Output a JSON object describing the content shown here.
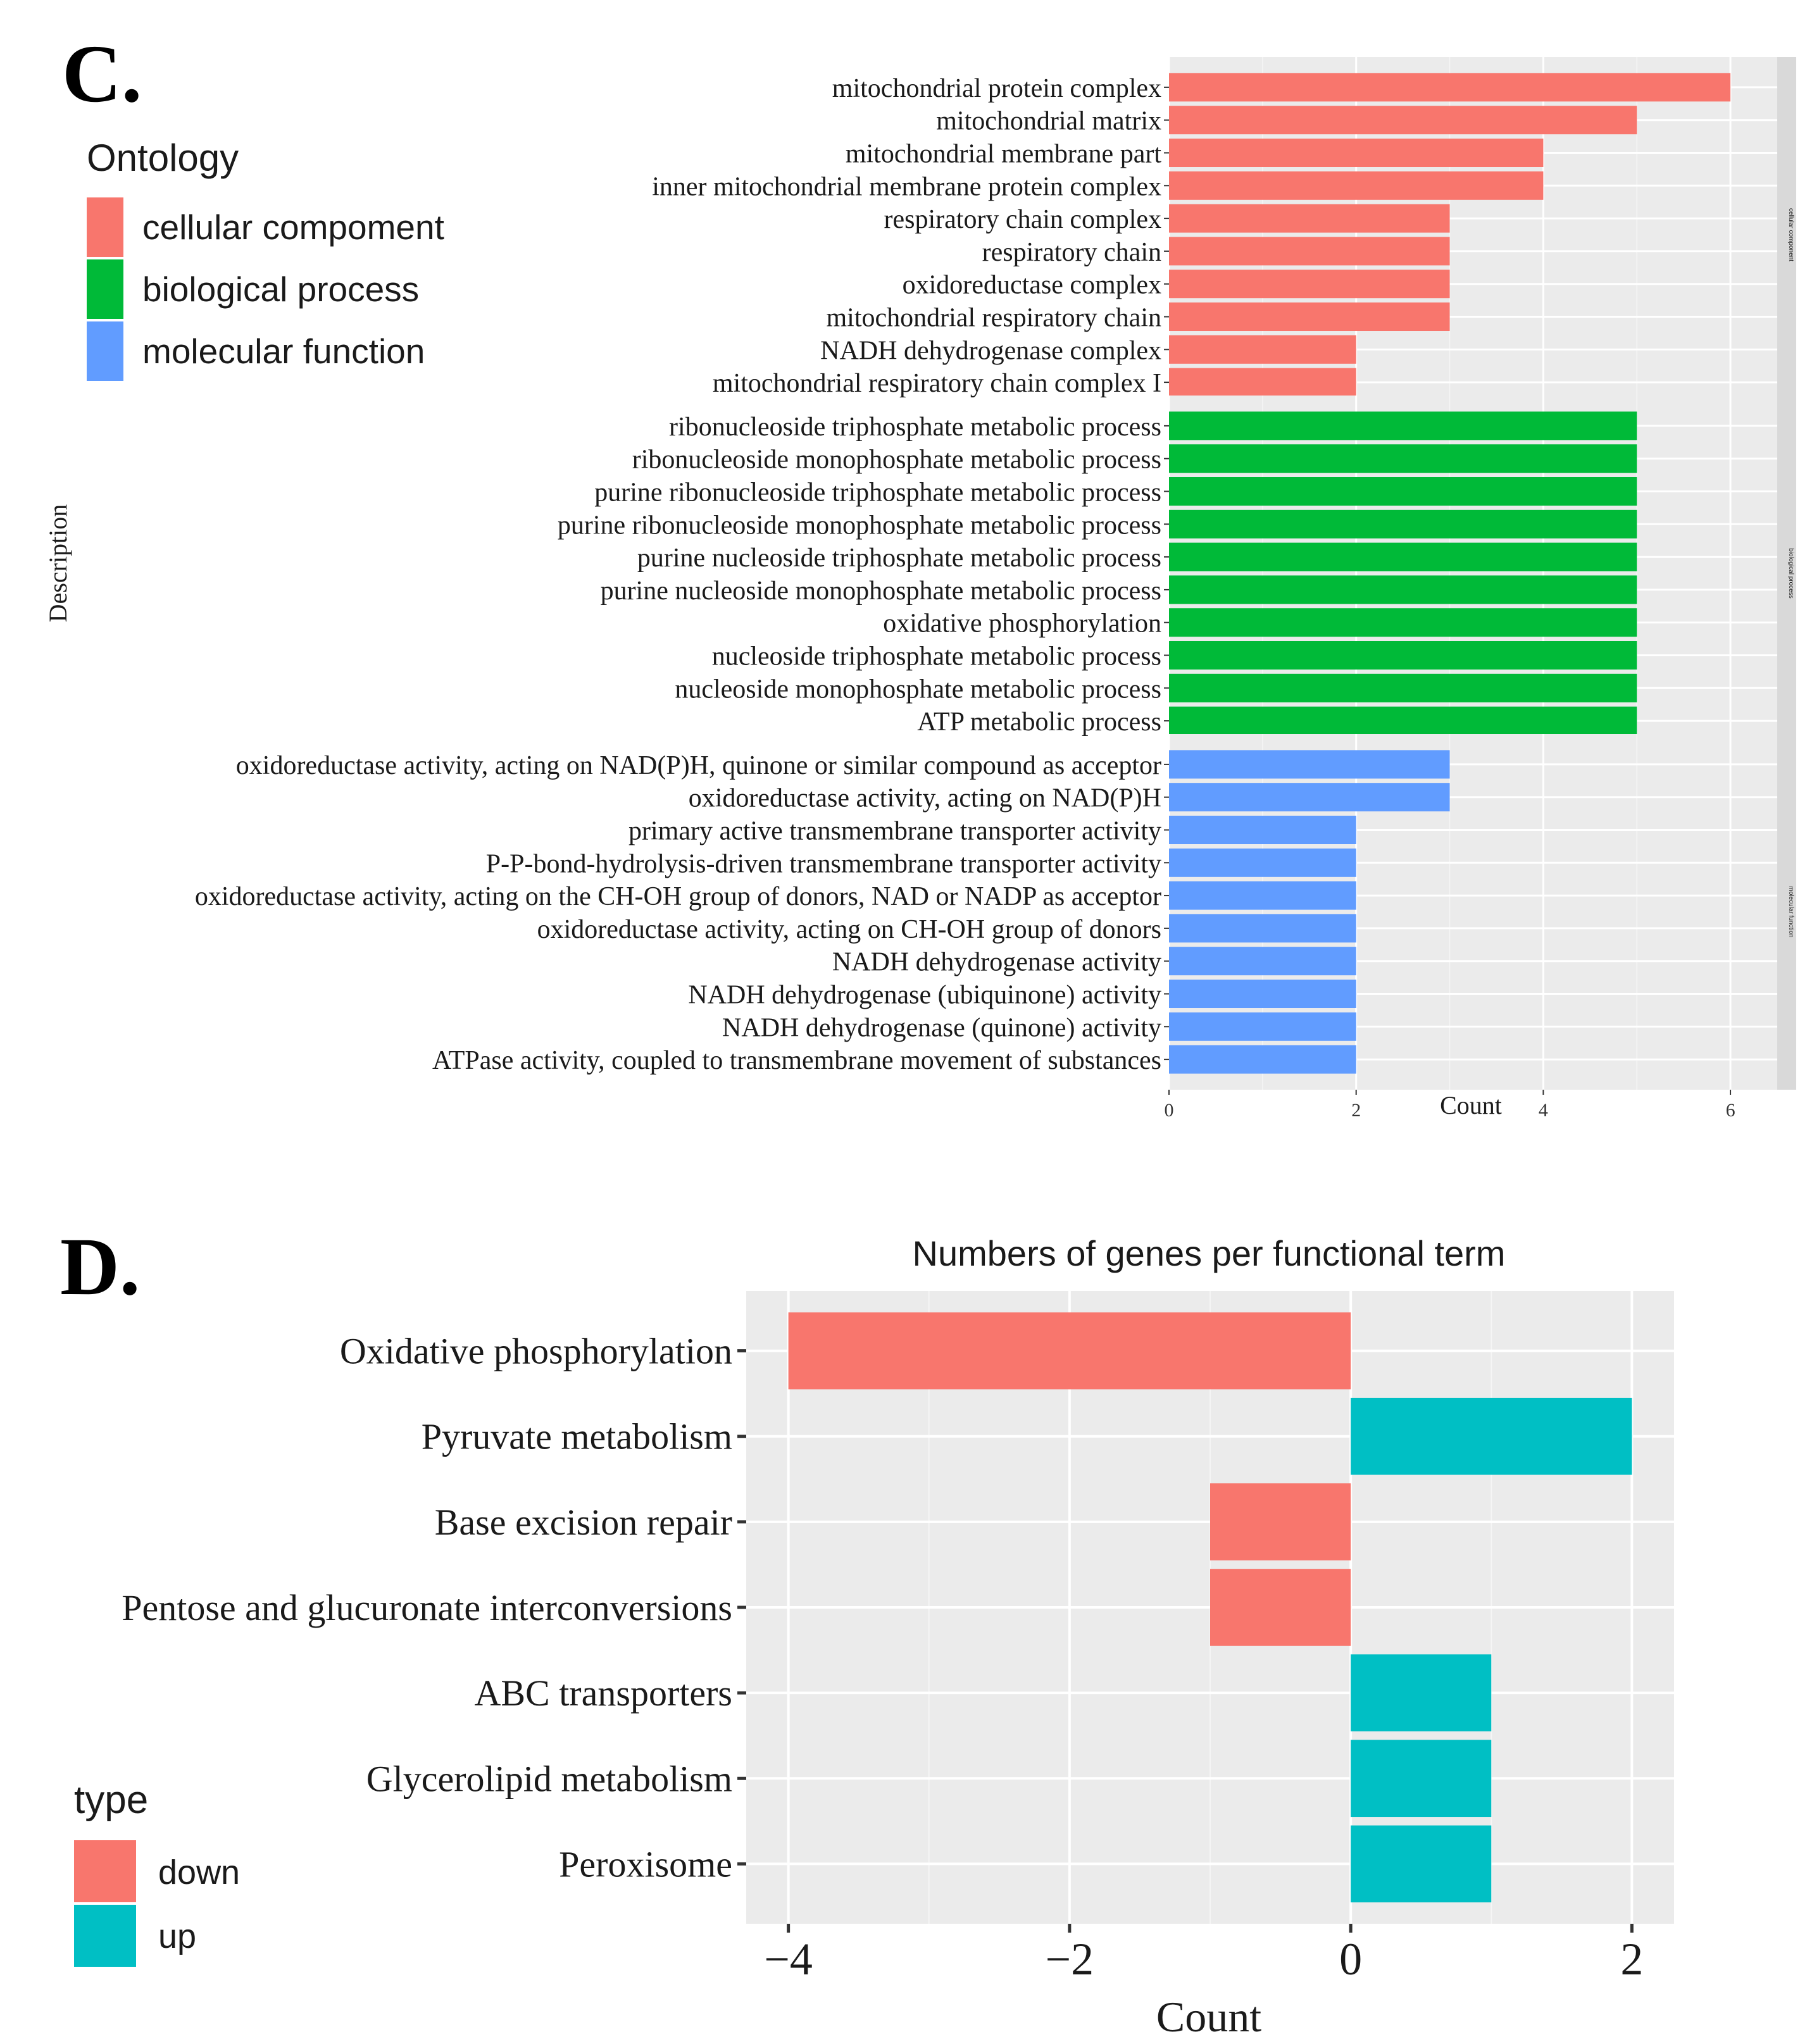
{
  "panel_c": {
    "label": "C.",
    "legend_title": "Ontology",
    "legend": [
      {
        "name": "cellular compoment",
        "color": "#F8766D"
      },
      {
        "name": "biological process",
        "color": "#00BA38"
      },
      {
        "name": "molecular function",
        "color": "#619CFF"
      }
    ]
  },
  "panel_d": {
    "label": "D.",
    "legend_title": "type",
    "legend": [
      {
        "name": "down",
        "color": "#F8766D"
      },
      {
        "name": "up",
        "color": "#00BFC4"
      }
    ]
  },
  "chart_data": [
    {
      "type": "bar",
      "orientation": "horizontal",
      "title": "",
      "xlabel": "Count",
      "ylabel": "Description",
      "xlim": [
        0,
        6.5
      ],
      "xticks": [
        0,
        2,
        4,
        6
      ],
      "grid": true,
      "facets": [
        {
          "name": "cellular component",
          "color": "#F8766D",
          "categories": [
            "mitochondrial protein complex",
            "mitochondrial matrix",
            "mitochondrial membrane part",
            "inner mitochondrial membrane protein complex",
            "respiratory chain complex",
            "respiratory chain",
            "oxidoreductase complex",
            "mitochondrial respiratory chain",
            "NADH dehydrogenase complex",
            "mitochondrial respiratory chain complex I"
          ],
          "values": [
            6,
            5,
            4,
            4,
            3,
            3,
            3,
            3,
            2,
            2
          ]
        },
        {
          "name": "biological process",
          "color": "#00BA38",
          "categories": [
            "ribonucleoside triphosphate metabolic process",
            "ribonucleoside monophosphate metabolic process",
            "purine ribonucleoside triphosphate metabolic process",
            "purine ribonucleoside monophosphate metabolic process",
            "purine nucleoside triphosphate metabolic process",
            "purine nucleoside monophosphate metabolic process",
            "oxidative phosphorylation",
            "nucleoside triphosphate metabolic process",
            "nucleoside monophosphate metabolic process",
            "ATP metabolic process"
          ],
          "values": [
            5,
            5,
            5,
            5,
            5,
            5,
            5,
            5,
            5,
            5
          ]
        },
        {
          "name": "molecular function",
          "color": "#619CFF",
          "categories": [
            "oxidoreductase activity, acting on NAD(P)H, quinone or similar compound as acceptor",
            "oxidoreductase activity, acting on NAD(P)H",
            "primary active transmembrane transporter activity",
            "P-P-bond-hydrolysis-driven transmembrane transporter activity",
            "oxidoreductase activity, acting on the CH-OH group of donors, NAD or NADP as acceptor",
            "oxidoreductase activity, acting on CH-OH group of donors",
            "NADH dehydrogenase activity",
            "NADH dehydrogenase (ubiquinone) activity",
            "NADH dehydrogenase (quinone) activity",
            "ATPase activity, coupled to transmembrane movement of substances"
          ],
          "values": [
            3,
            3,
            2,
            2,
            2,
            2,
            2,
            2,
            2,
            2
          ]
        }
      ]
    },
    {
      "type": "bar",
      "orientation": "horizontal",
      "title": "Numbers of genes per functional term",
      "xlabel": "Count",
      "ylabel": "",
      "xlim": [
        -4.3,
        2.3
      ],
      "xticks": [
        -4,
        -2,
        0,
        2
      ],
      "xtick_labels": [
        "−4",
        "−2",
        "0",
        "2"
      ],
      "grid": true,
      "categories": [
        "Oxidative phosphorylation",
        "Pyruvate metabolism",
        "Base excision repair",
        "Pentose and glucuronate interconversions",
        "ABC transporters",
        "Glycerolipid metabolism",
        "Peroxisome"
      ],
      "values": [
        -4,
        2,
        -1,
        -1,
        1,
        1,
        1
      ],
      "types": [
        "down",
        "up",
        "down",
        "down",
        "up",
        "up",
        "up"
      ]
    }
  ]
}
